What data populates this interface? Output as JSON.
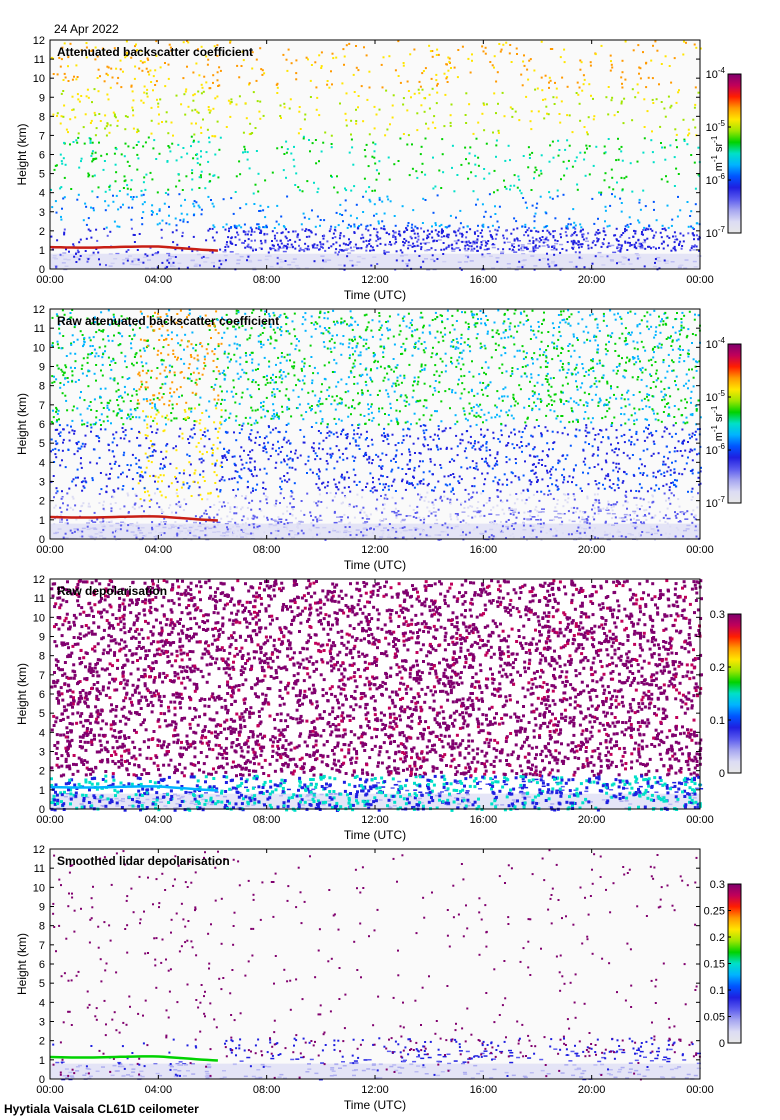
{
  "date": "24 Apr 2022",
  "footer": "Hyytiala Vaisala CL61D ceilometer",
  "colors": {
    "colormap": [
      "#e8e8e8",
      "#dcdcf4",
      "#a6a6f0",
      "#5a5aee",
      "#1f1fe0",
      "#0055ff",
      "#00b4ff",
      "#00e0c8",
      "#00d200",
      "#a0e600",
      "#ffe600",
      "#ff9a00",
      "#ff1e00",
      "#c0005a",
      "#80006e"
    ],
    "cloud_layer": "#c81e14"
  },
  "chart_data": [
    {
      "type": "heatmap",
      "title": "Attenuated backscatter coefficient",
      "xlabel": "Time (UTC)",
      "ylabel": "Height (km)",
      "x_ticks": [
        "00:00",
        "04:00",
        "08:00",
        "12:00",
        "16:00",
        "20:00",
        "00:00"
      ],
      "y_ticks": [
        "0",
        "1",
        "2",
        "3",
        "4",
        "5",
        "6",
        "7",
        "8",
        "9",
        "10",
        "11",
        "12"
      ],
      "xlim_hours": [
        0,
        24
      ],
      "ylim_km": [
        0,
        12
      ],
      "colorbar": {
        "scale": "log",
        "range": [
          1e-07,
          0.0001
        ],
        "unit_base": "m",
        "unit_base_exp": "-1",
        "unit_sr": "sr",
        "unit_sr_exp": "-1",
        "ticks": [
          {
            "base": "10",
            "exp": "-4",
            "value": 0.0001
          },
          {
            "base": "10",
            "exp": "-5",
            "value": 1e-05
          },
          {
            "base": "10",
            "exp": "-6",
            "value": 1e-06
          },
          {
            "base": "10",
            "exp": "-7",
            "value": 1e-07
          }
        ]
      }
    },
    {
      "type": "heatmap",
      "title": "Raw attenuated backscatter coefficient",
      "xlabel": "Time (UTC)",
      "ylabel": "Height (km)",
      "x_ticks": [
        "00:00",
        "04:00",
        "08:00",
        "12:00",
        "16:00",
        "20:00",
        "00:00"
      ],
      "y_ticks": [
        "0",
        "1",
        "2",
        "3",
        "4",
        "5",
        "6",
        "7",
        "8",
        "9",
        "10",
        "11",
        "12"
      ],
      "xlim_hours": [
        0,
        24
      ],
      "ylim_km": [
        0,
        12
      ],
      "colorbar": {
        "scale": "log",
        "range": [
          1e-07,
          0.0001
        ],
        "unit_base": "m",
        "unit_base_exp": "-1",
        "unit_sr": "sr",
        "unit_sr_exp": "-1",
        "ticks": [
          {
            "base": "10",
            "exp": "-4",
            "value": 0.0001
          },
          {
            "base": "10",
            "exp": "-5",
            "value": 1e-05
          },
          {
            "base": "10",
            "exp": "-6",
            "value": 1e-06
          },
          {
            "base": "10",
            "exp": "-7",
            "value": 1e-07
          }
        ]
      }
    },
    {
      "type": "heatmap",
      "title": "Raw depolarisation",
      "xlabel": "Time (UTC)",
      "ylabel": "Height (km)",
      "x_ticks": [
        "00:00",
        "04:00",
        "08:00",
        "12:00",
        "16:00",
        "20:00",
        "00:00"
      ],
      "y_ticks": [
        "0",
        "1",
        "2",
        "3",
        "4",
        "5",
        "6",
        "7",
        "8",
        "9",
        "10",
        "11",
        "12"
      ],
      "xlim_hours": [
        0,
        24
      ],
      "ylim_km": [
        0,
        12
      ],
      "colorbar": {
        "scale": "linear",
        "range": [
          0,
          0.3
        ],
        "ticks": [
          {
            "label": "0.3",
            "value": 0.3
          },
          {
            "label": "0.2",
            "value": 0.2
          },
          {
            "label": "0.1",
            "value": 0.1
          },
          {
            "label": "0",
            "value": 0
          }
        ]
      }
    },
    {
      "type": "heatmap",
      "title": "Smoothed lidar depolarisation",
      "xlabel": "Time (UTC)",
      "ylabel": "Height (km)",
      "x_ticks": [
        "00:00",
        "04:00",
        "08:00",
        "12:00",
        "16:00",
        "20:00",
        "00:00"
      ],
      "y_ticks": [
        "0",
        "1",
        "2",
        "3",
        "4",
        "5",
        "6",
        "7",
        "8",
        "9",
        "10",
        "11",
        "12"
      ],
      "xlim_hours": [
        0,
        24
      ],
      "ylim_km": [
        0,
        12
      ],
      "colorbar": {
        "scale": "linear",
        "range": [
          0,
          0.3
        ],
        "ticks": [
          {
            "label": "0.3",
            "value": 0.3
          },
          {
            "label": "0.25",
            "value": 0.25
          },
          {
            "label": "0.2",
            "value": 0.2
          },
          {
            "label": "0.15",
            "value": 0.15
          },
          {
            "label": "0.1",
            "value": 0.1
          },
          {
            "label": "0.05",
            "value": 0.05
          },
          {
            "label": "0",
            "value": 0
          }
        ]
      }
    }
  ]
}
